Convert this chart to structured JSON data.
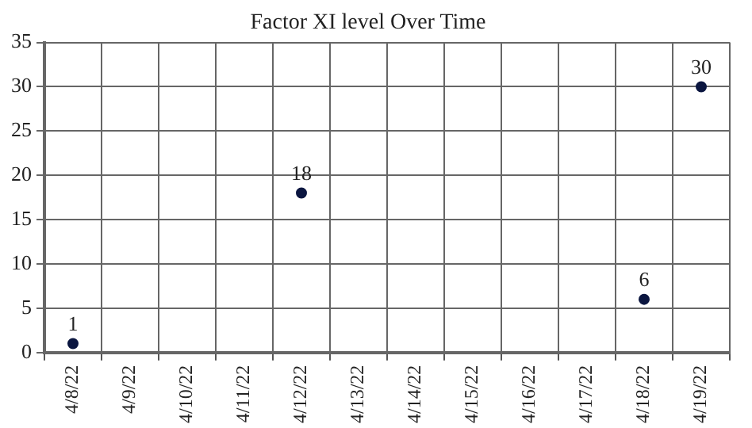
{
  "chart_data": {
    "type": "scatter",
    "title": "Factor XI level Over Time",
    "categories": [
      "4/8/22",
      "4/9/22",
      "4/10/22",
      "4/11/22",
      "4/12/22",
      "4/13/22",
      "4/14/22",
      "4/15/22",
      "4/16/22",
      "4/17/22",
      "4/18/22",
      "4/19/22"
    ],
    "values": [
      1,
      null,
      null,
      null,
      18,
      null,
      null,
      null,
      null,
      null,
      6,
      30
    ],
    "color": "#0b1640",
    "ylim": [
      0,
      35
    ],
    "yticks": [
      0,
      5,
      10,
      15,
      20,
      25,
      30,
      35
    ],
    "grid": true,
    "marker": "circle",
    "data_labels": true,
    "legend": false
  }
}
